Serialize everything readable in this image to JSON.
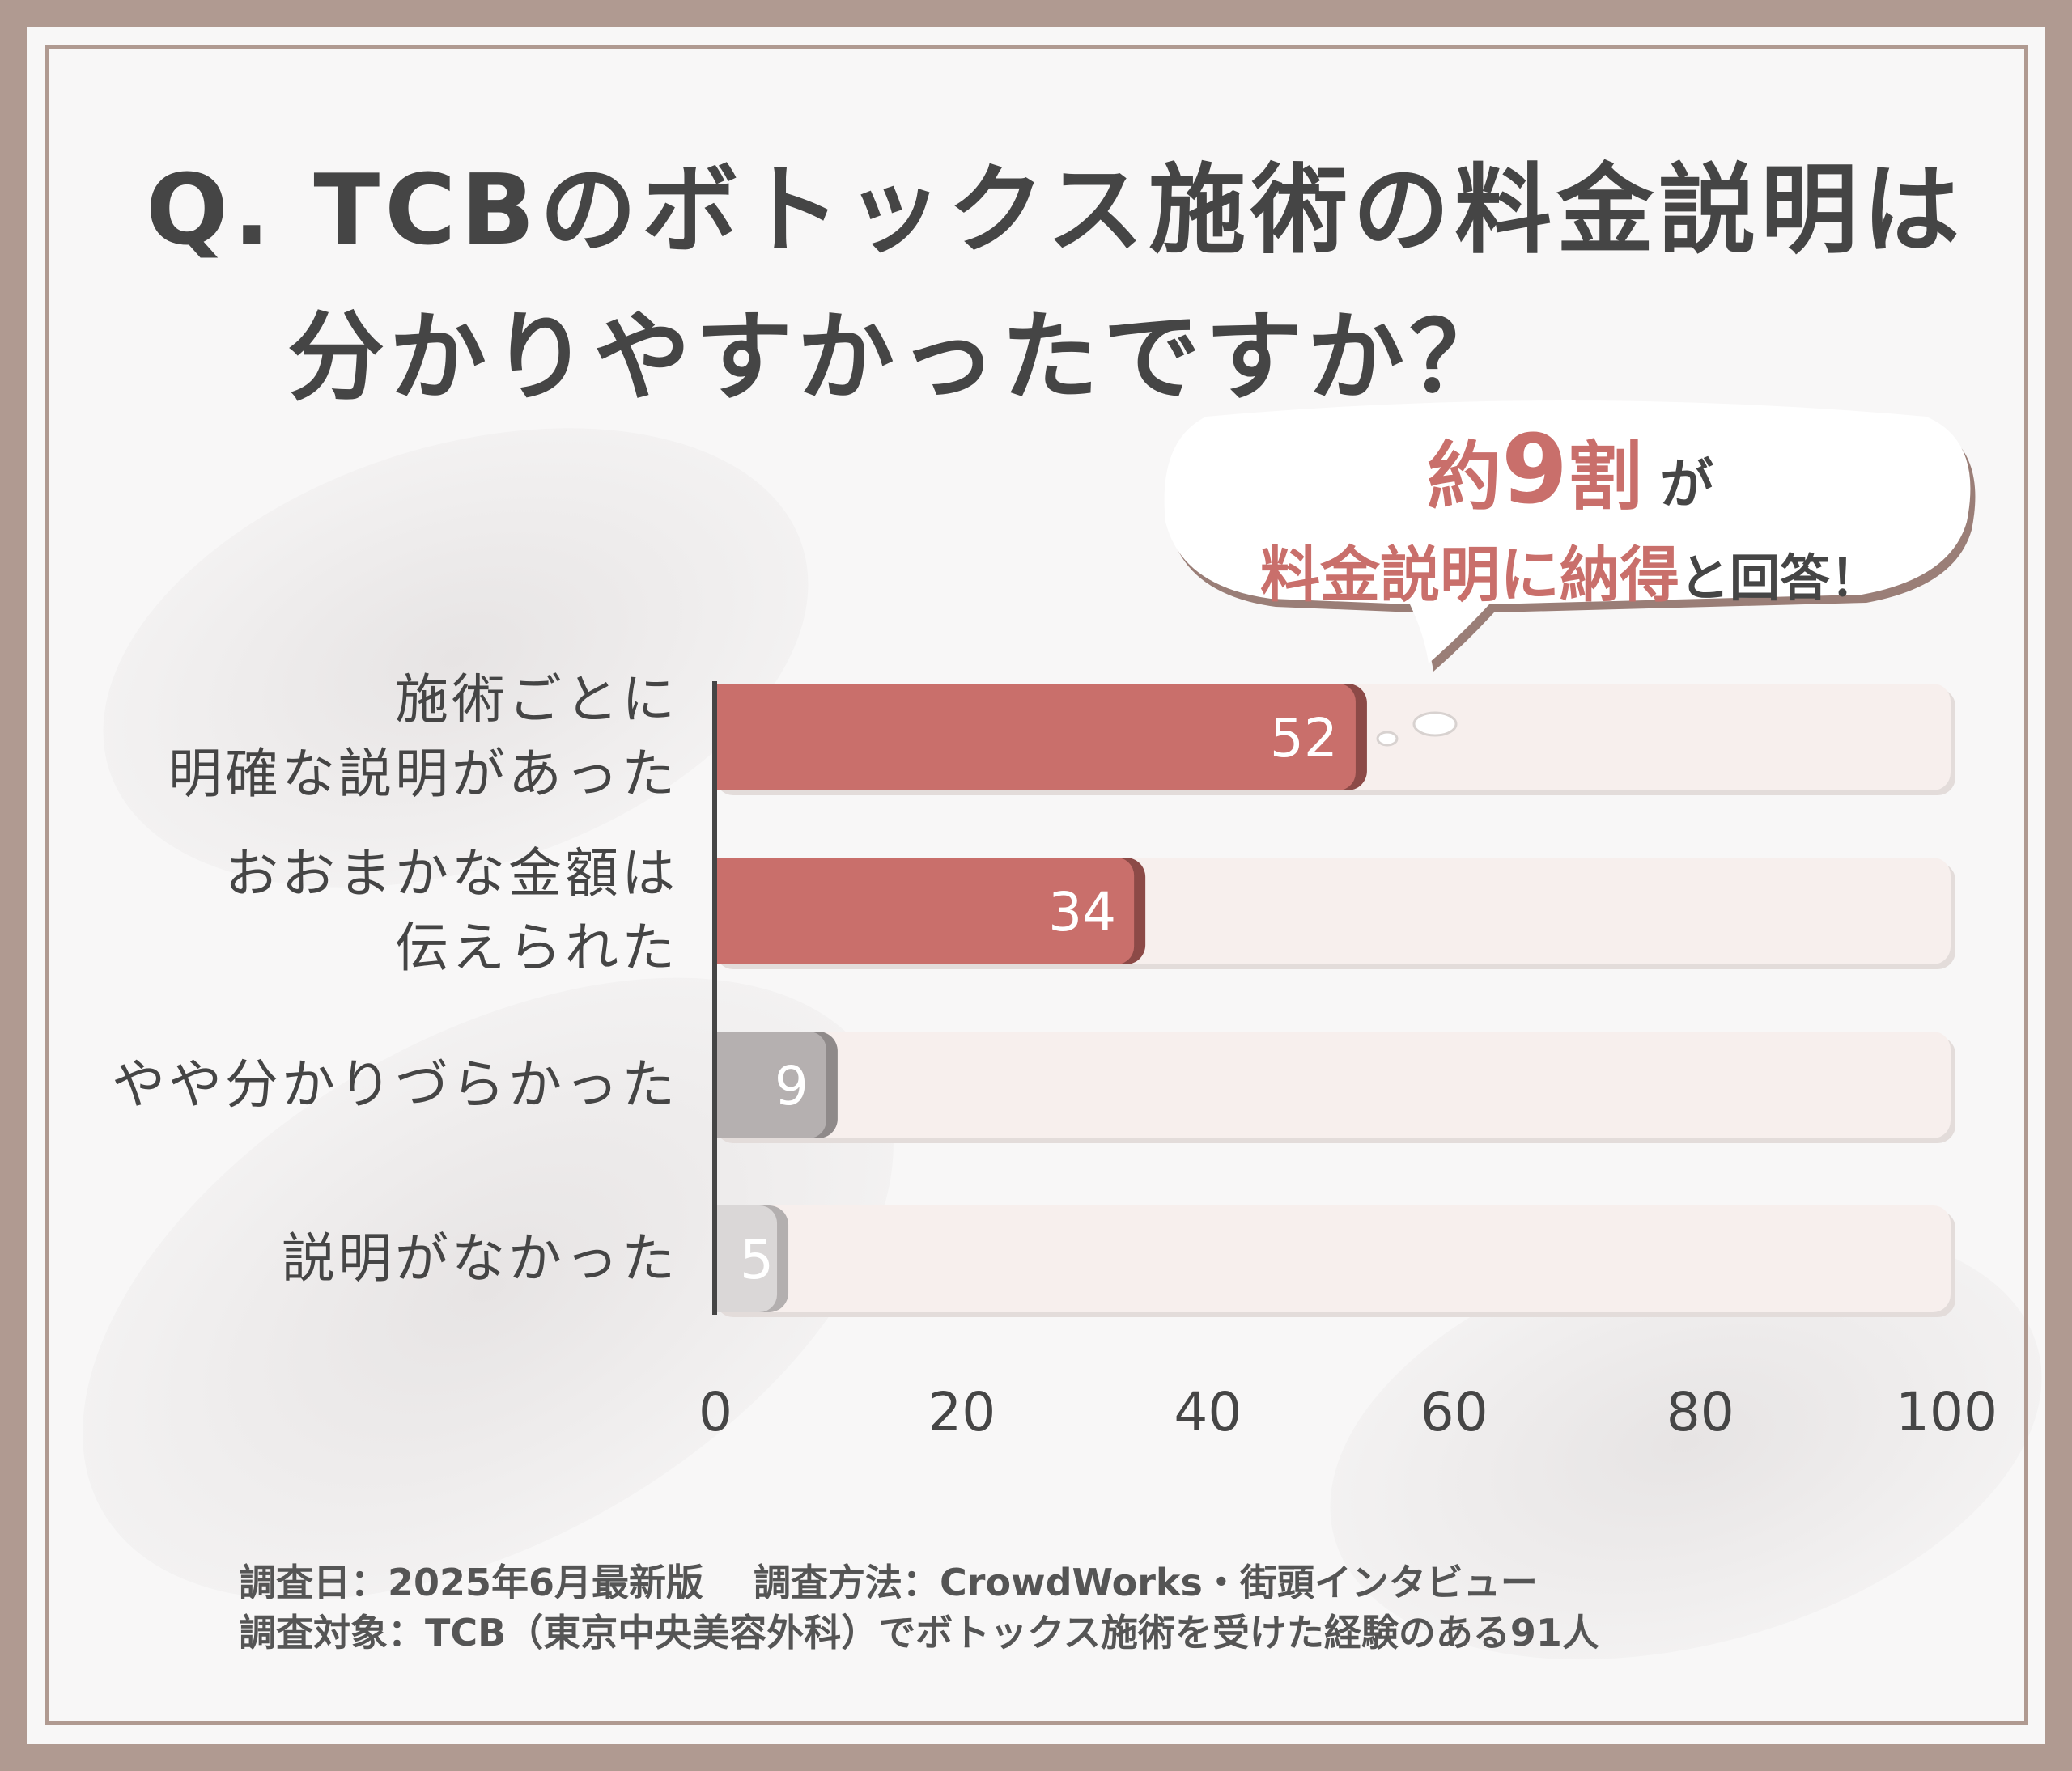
{
  "title": {
    "line1": "Q. TCBのボトックス施術の料金説明は",
    "line2": "分かりやすかったですか？"
  },
  "callout": {
    "line1_accent_prefix": "約",
    "line1_accent_number": "9",
    "line1_accent_suffix": "割",
    "line1_plain": "が",
    "line2_accent": "料金説明に納得",
    "line2_plain": "と回答！"
  },
  "colors": {
    "accent": "#c96f6b",
    "bar_gray": "#b5b0b0",
    "bar_light_gray": "#dad7d7",
    "track": "#f7efed",
    "frame": "#b09a91",
    "text": "#454545"
  },
  "chart_data": {
    "type": "bar",
    "orientation": "horizontal",
    "categories": [
      [
        "施術ごとに",
        "明確な説明があった"
      ],
      [
        "おおまかな金額は",
        "伝えられた"
      ],
      [
        "やや分かりづらかった"
      ],
      [
        "説明がなかった"
      ]
    ],
    "values": [
      52,
      34,
      9,
      5
    ],
    "value_labels": [
      "52",
      "34",
      "9",
      "5"
    ],
    "bar_colors": [
      "#c96f6b",
      "#c96f6b",
      "#b5b0b0",
      "#dad7d7"
    ],
    "xlim": [
      0,
      100
    ],
    "xticks": [
      "0",
      "20",
      "40",
      "60",
      "80",
      "100"
    ],
    "grid": false,
    "legend": "none"
  },
  "footer": {
    "line1": "調査日：2025年6月最新版　 調査方法：CrowdWorks・街頭インタビュー",
    "line2": "調査対象：TCB（東京中央美容外科）でボトックス施術を受けた経験のある91人"
  }
}
